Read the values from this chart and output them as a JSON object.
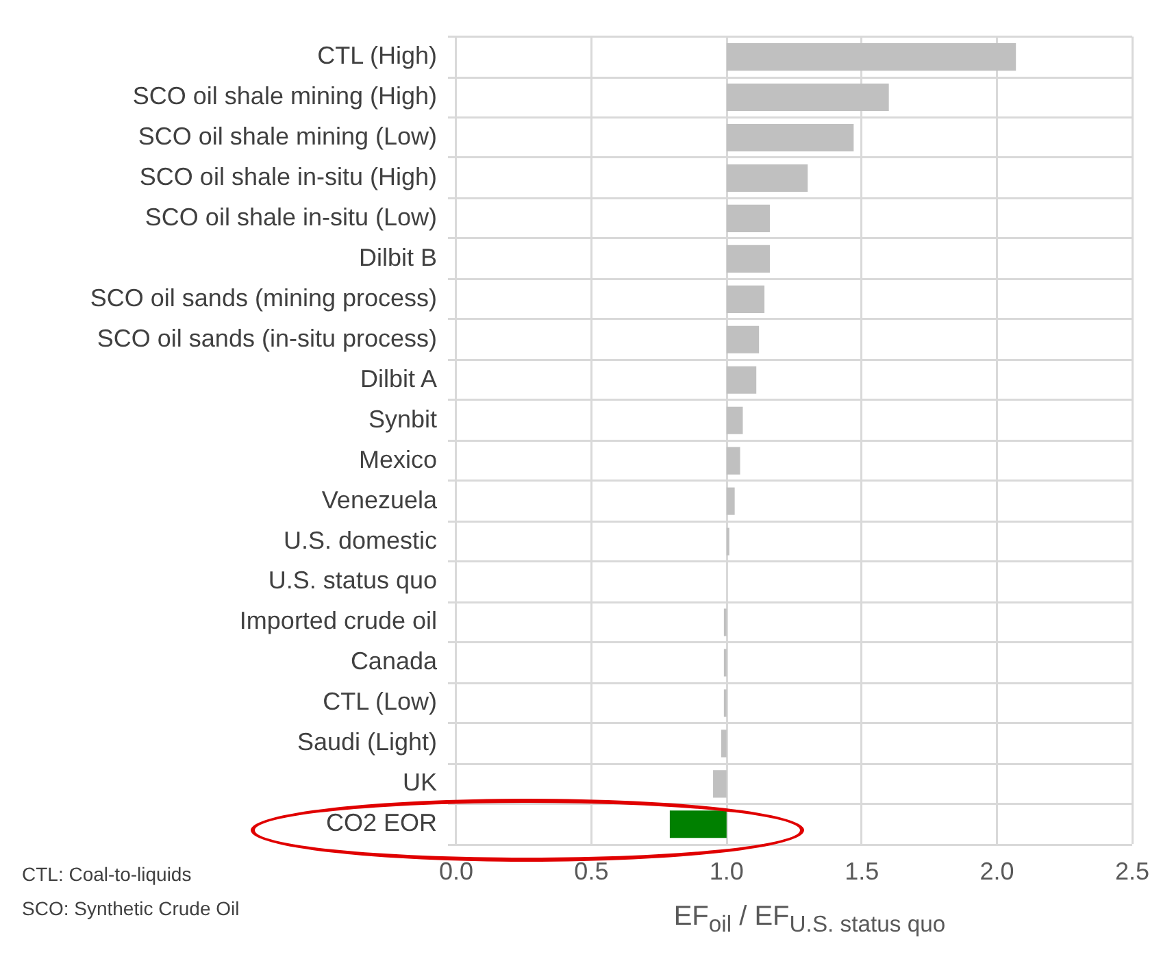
{
  "chart_data": {
    "type": "bar",
    "orientation": "horizontal",
    "xlabel": "EF$_{oil}$ / EF$_{U.S. status quo}$",
    "categories": [
      "CTL (High)",
      "SCO oil shale mining (High)",
      "SCO oil shale mining (Low)",
      "SCO oil shale in-situ (High)",
      "SCO oil shale in-situ (Low)",
      "Dilbit B",
      "SCO oil sands (mining process)",
      "SCO oil sands (in-situ process)",
      "Dilbit A",
      "Synbit",
      "Mexico",
      "Venezuela",
      "U.S. domestic",
      "U.S. status quo",
      "Imported crude oil",
      "Canada",
      "CTL (Low)",
      "Saudi (Light)",
      "UK",
      "CO2 EOR"
    ],
    "values": [
      1.07,
      0.6,
      0.47,
      0.3,
      0.16,
      0.16,
      0.14,
      0.12,
      0.11,
      0.06,
      0.05,
      0.03,
      0.01,
      null,
      -0.01,
      -0.01,
      -0.01,
      -0.02,
      -0.05,
      -0.21
    ],
    "base": [
      1,
      1,
      1,
      1,
      1,
      1,
      1,
      1,
      1,
      1,
      1,
      1,
      1,
      null,
      1,
      1,
      1,
      1,
      1,
      1
    ],
    "colors": [
      "#c0c0c0",
      "#c0c0c0",
      "#c0c0c0",
      "#c0c0c0",
      "#c0c0c0",
      "#c0c0c0",
      "#c0c0c0",
      "#c0c0c0",
      "#c0c0c0",
      "#c0c0c0",
      "#c0c0c0",
      "#c0c0c0",
      "#c0c0c0",
      "#c0c0c0",
      "#c0c0c0",
      "#c0c0c0",
      "#c0c0c0",
      "#c0c0c0",
      "#c0c0c0",
      "#008000"
    ],
    "xlim": [
      0,
      2.5
    ],
    "xticks": [
      {
        "value": 0,
        "label": "0.0"
      },
      {
        "value": 0.5,
        "label": "0.5"
      },
      {
        "value": 1,
        "label": "1.0"
      },
      {
        "value": 1.5,
        "label": "1.5"
      },
      {
        "value": 2,
        "label": "2.0"
      },
      {
        "value": 2.5,
        "label": "2.5"
      }
    ],
    "grid": true,
    "annotations": [
      "CTL: Coal-to-liquids",
      "SCO: Synthetic Crude Oil"
    ]
  }
}
